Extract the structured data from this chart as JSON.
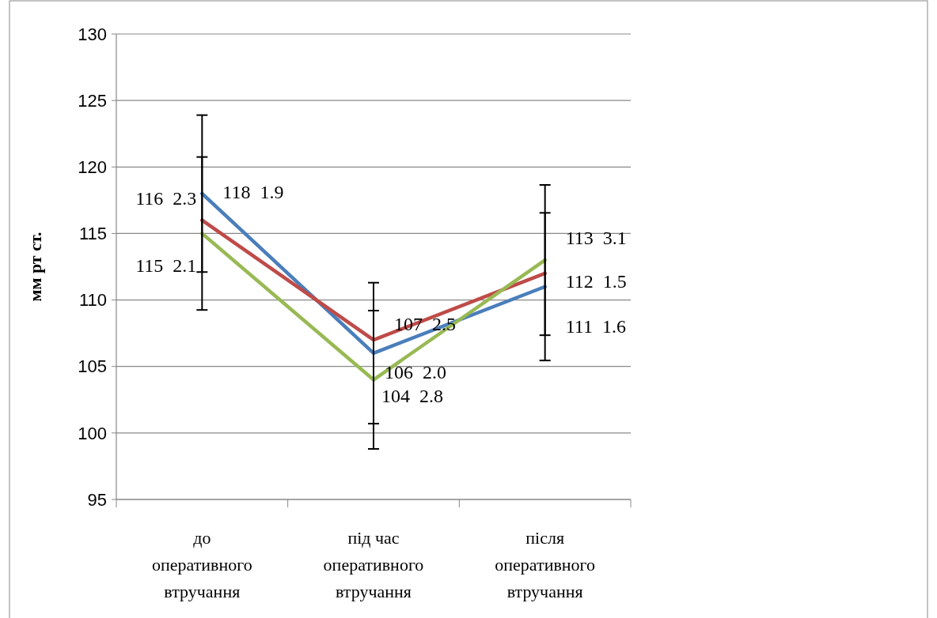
{
  "chart_data": {
    "type": "line",
    "ylabel": "мм рт ст.",
    "categories": [
      "до оперативного втручання",
      "під час оперативного втручання",
      "після оперативного втручання"
    ],
    "ylim": [
      95,
      130
    ],
    "yticks": [
      95,
      100,
      105,
      110,
      115,
      120,
      125,
      130
    ],
    "grid": "y",
    "marker": "none",
    "series": [
      {
        "color": "#4a7ebb",
        "values": [
          118,
          106,
          111
        ],
        "errors": [
          5.9,
          5.3,
          5.55
        ],
        "value_labels": [
          "118  1.9",
          "106  2.0",
          "111  1.6"
        ]
      },
      {
        "color": "#be4b48",
        "values": [
          116,
          107,
          112
        ],
        "value_labels": [
          "116  2.3",
          "107  2.5",
          "112  1.5"
        ]
      },
      {
        "color": "#98b954",
        "values": [
          115,
          104,
          113
        ],
        "errors": [
          5.75,
          5.2,
          5.65
        ],
        "value_labels": [
          "115  2.1",
          "104  2.8",
          "113  3.1"
        ]
      }
    ]
  }
}
